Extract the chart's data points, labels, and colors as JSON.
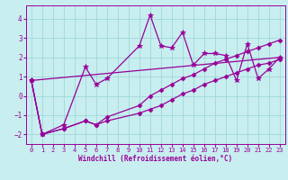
{
  "xlabel": "Windchill (Refroidissement éolien,°C)",
  "background_color": "#c8eef0",
  "grid_color": "#a0d8d8",
  "line_color": "#990099",
  "xlim": [
    -0.5,
    23.5
  ],
  "ylim": [
    -2.5,
    4.7
  ],
  "yticks": [
    -2,
    -1,
    0,
    1,
    2,
    3,
    4
  ],
  "xticks": [
    0,
    1,
    2,
    3,
    4,
    5,
    6,
    7,
    8,
    9,
    10,
    11,
    12,
    13,
    14,
    15,
    16,
    17,
    18,
    19,
    20,
    21,
    22,
    23
  ],
  "series": [
    {
      "x": [
        0,
        1,
        3,
        5,
        6,
        7,
        10,
        11,
        12,
        13,
        14,
        15,
        16,
        17,
        18,
        19,
        20,
        21,
        22,
        23
      ],
      "y": [
        0.8,
        -2.0,
        -1.5,
        1.5,
        0.6,
        0.9,
        2.6,
        4.2,
        2.6,
        2.5,
        3.3,
        1.6,
        2.2,
        2.2,
        2.1,
        0.8,
        2.7,
        0.9,
        1.4,
        2.0
      ],
      "marker": "*",
      "markersize": 4,
      "linewidth": 0.9
    },
    {
      "x": [
        0,
        1,
        3,
        5,
        6,
        7,
        10,
        11,
        12,
        13,
        14,
        15,
        16,
        17,
        18,
        19,
        20,
        21,
        22,
        23
      ],
      "y": [
        0.8,
        -2.0,
        -1.7,
        -1.3,
        -1.5,
        -1.3,
        -0.9,
        -0.7,
        -0.5,
        -0.2,
        0.1,
        0.3,
        0.6,
        0.8,
        1.0,
        1.2,
        1.4,
        1.6,
        1.7,
        1.9
      ],
      "marker": "D",
      "markersize": 2.5,
      "linewidth": 0.9
    },
    {
      "x": [
        0,
        1,
        3,
        5,
        6,
        7,
        10,
        11,
        12,
        13,
        14,
        15,
        16,
        17,
        18,
        19,
        20,
        21,
        22,
        23
      ],
      "y": [
        0.8,
        -2.0,
        -1.7,
        -1.3,
        -1.5,
        -1.1,
        -0.5,
        0.0,
        0.3,
        0.6,
        0.9,
        1.1,
        1.4,
        1.7,
        1.9,
        2.1,
        2.3,
        2.5,
        2.7,
        2.9
      ],
      "marker": "D",
      "markersize": 2.5,
      "linewidth": 0.9
    },
    {
      "x": [
        0,
        23
      ],
      "y": [
        0.8,
        2.0
      ],
      "marker": "D",
      "markersize": 2.5,
      "linewidth": 0.9
    }
  ]
}
